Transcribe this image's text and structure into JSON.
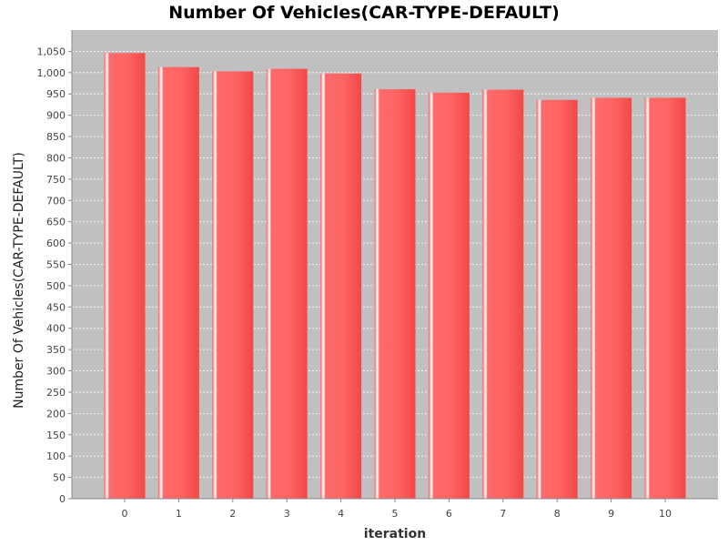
{
  "chart_data": {
    "type": "bar",
    "title": "Number Of Vehicles(CAR-TYPE-DEFAULT)",
    "xlabel": "iteration",
    "ylabel": "Number Of Vehicles(CAR-TYPE-DEFAULT)",
    "categories": [
      "0",
      "1",
      "2",
      "3",
      "4",
      "5",
      "6",
      "7",
      "8",
      "9",
      "10"
    ],
    "values": [
      1046,
      1013,
      1003,
      1009,
      998,
      961,
      953,
      960,
      936,
      941,
      941
    ],
    "ylim": [
      0,
      1100
    ],
    "yticks": [
      0,
      50,
      100,
      150,
      200,
      250,
      300,
      350,
      400,
      450,
      500,
      550,
      600,
      650,
      700,
      750,
      800,
      850,
      900,
      950,
      1000,
      1050
    ],
    "ytick_labels": [
      "0",
      "50",
      "100",
      "150",
      "200",
      "250",
      "300",
      "350",
      "400",
      "450",
      "500",
      "550",
      "600",
      "650",
      "700",
      "750",
      "800",
      "850",
      "900",
      "950",
      "1,000",
      "1,050"
    ],
    "grid": true,
    "colors": {
      "plot_background": "#c0c0c0",
      "bar": "#ff5555",
      "bar_highlight": "#ffffff",
      "grid": "#ffffff"
    }
  }
}
